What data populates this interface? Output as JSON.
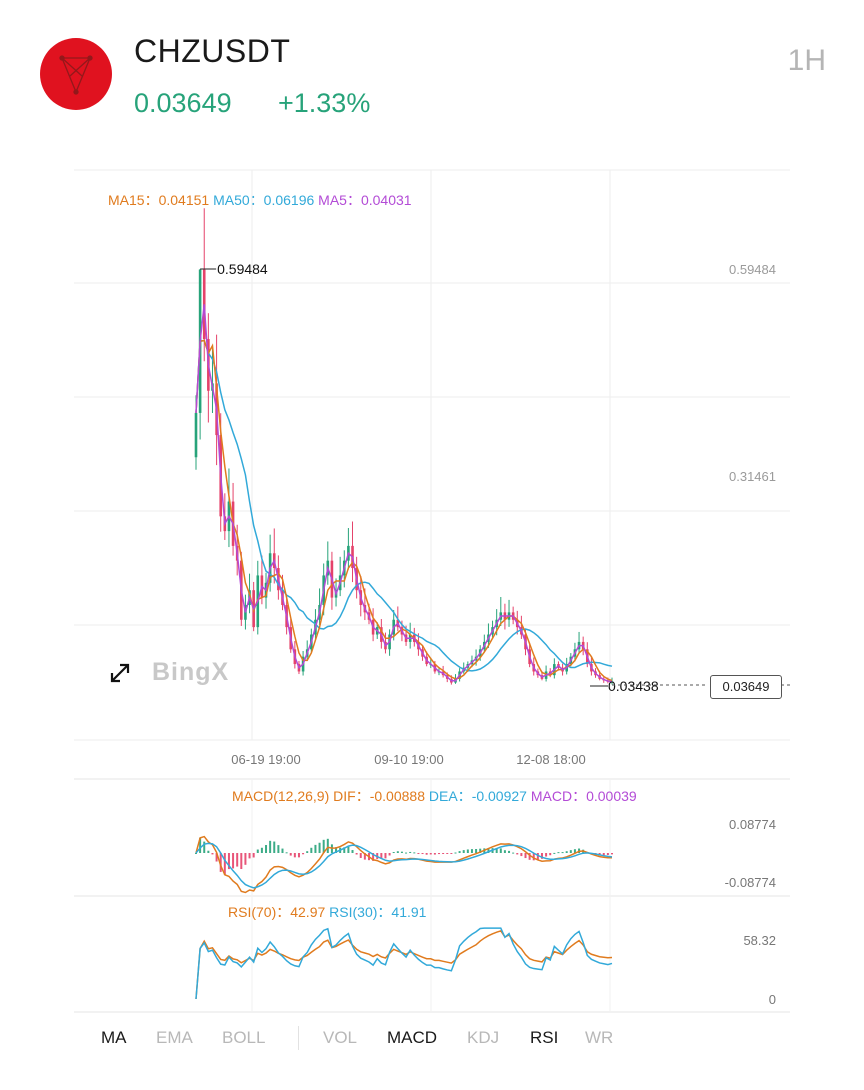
{
  "header": {
    "symbol": "CHZUSDT",
    "price": "0.03649",
    "change": "+1.33%",
    "interval": "1H",
    "colors": {
      "up": "#27a37a",
      "down": "#e5426a",
      "logo": "#e0121f"
    }
  },
  "watermark": "BingX",
  "indicators": {
    "ma15_label": "MA15：",
    "ma15_value": "0.04151",
    "ma50_label": "MA50：",
    "ma50_value": "0.06196",
    "ma5_label": "MA5：",
    "ma5_value": "0.04031",
    "macd_label": "MACD(12,26,9)",
    "dif_label": "DIF：",
    "dif_value": "-0.00888",
    "dea_label": "DEA：",
    "dea_value": "-0.00927",
    "macd_value_label": "MACD：",
    "macd_value": "0.00039",
    "rsi70_label": "RSI(70)：",
    "rsi70_value": "42.97",
    "rsi30_label": "RSI(30)：",
    "rsi30_value": "41.91"
  },
  "last_price_tag": "0.03649",
  "chart_data": [
    {
      "type": "candlestick",
      "y_tick_labels": [
        "0.59484",
        "0.31461"
      ],
      "y_ticks": [
        0.59484,
        0.31461
      ],
      "ylim": [
        0.0223,
        0.7094
      ],
      "x_tick_labels": [
        "06-19 19:00",
        "09-10 19:00",
        "12-08 18:00"
      ],
      "high_marker": "0.59484",
      "low_marker": "0.03438",
      "grid": true,
      "series": [
        {
          "name": "MA15",
          "color": "#e07b1e"
        },
        {
          "name": "MA50",
          "color": "#32a9d9"
        },
        {
          "name": "MA5",
          "color": "#b34bd6"
        }
      ],
      "closes": [
        0.4,
        0.594,
        0.5,
        0.43,
        0.44,
        0.37,
        0.26,
        0.24,
        0.28,
        0.22,
        0.2,
        0.12,
        0.14,
        0.16,
        0.11,
        0.18,
        0.15,
        0.17,
        0.21,
        0.19,
        0.16,
        0.14,
        0.11,
        0.08,
        0.06,
        0.05,
        0.07,
        0.08,
        0.1,
        0.12,
        0.14,
        0.18,
        0.2,
        0.15,
        0.16,
        0.18,
        0.2,
        0.22,
        0.19,
        0.16,
        0.14,
        0.13,
        0.12,
        0.1,
        0.11,
        0.09,
        0.08,
        0.1,
        0.12,
        0.11,
        0.1,
        0.09,
        0.1,
        0.09,
        0.08,
        0.07,
        0.06,
        0.06,
        0.05,
        0.05,
        0.045,
        0.04,
        0.035,
        0.04,
        0.05,
        0.055,
        0.06,
        0.065,
        0.07,
        0.08,
        0.09,
        0.1,
        0.11,
        0.12,
        0.13,
        0.12,
        0.13,
        0.12,
        0.11,
        0.1,
        0.08,
        0.06,
        0.05,
        0.045,
        0.04,
        0.05,
        0.045,
        0.06,
        0.055,
        0.05,
        0.06,
        0.07,
        0.08,
        0.09,
        0.08,
        0.06,
        0.05,
        0.045,
        0.04,
        0.038,
        0.036,
        0.0365
      ]
    },
    {
      "type": "macd",
      "y_tick_labels": [
        "0.08774",
        "-0.08774"
      ],
      "y_ticks": [
        0.08774,
        -0.08774
      ],
      "ylim": [
        -0.13,
        0.11
      ],
      "series": [
        {
          "name": "DIF",
          "color": "#e07b1e"
        },
        {
          "name": "DEA",
          "color": "#32a9d9"
        },
        {
          "name": "MACD",
          "color": "#b34bd6"
        }
      ]
    },
    {
      "type": "rsi",
      "y_tick_labels": [
        "58.32",
        "0"
      ],
      "y_ticks": [
        58.32,
        0
      ],
      "ylim": [
        -25,
        100
      ],
      "series": [
        {
          "name": "RSI(70)",
          "color": "#e07b1e"
        },
        {
          "name": "RSI(30)",
          "color": "#32a9d9"
        }
      ]
    }
  ],
  "tabs": [
    {
      "label": "MA",
      "active": true
    },
    {
      "label": "EMA",
      "active": false
    },
    {
      "label": "BOLL",
      "active": false
    },
    {
      "label": "VOL",
      "active": false
    },
    {
      "label": "MACD",
      "active": true
    },
    {
      "label": "KDJ",
      "active": false
    },
    {
      "label": "RSI",
      "active": true
    },
    {
      "label": "WR",
      "active": false
    }
  ]
}
